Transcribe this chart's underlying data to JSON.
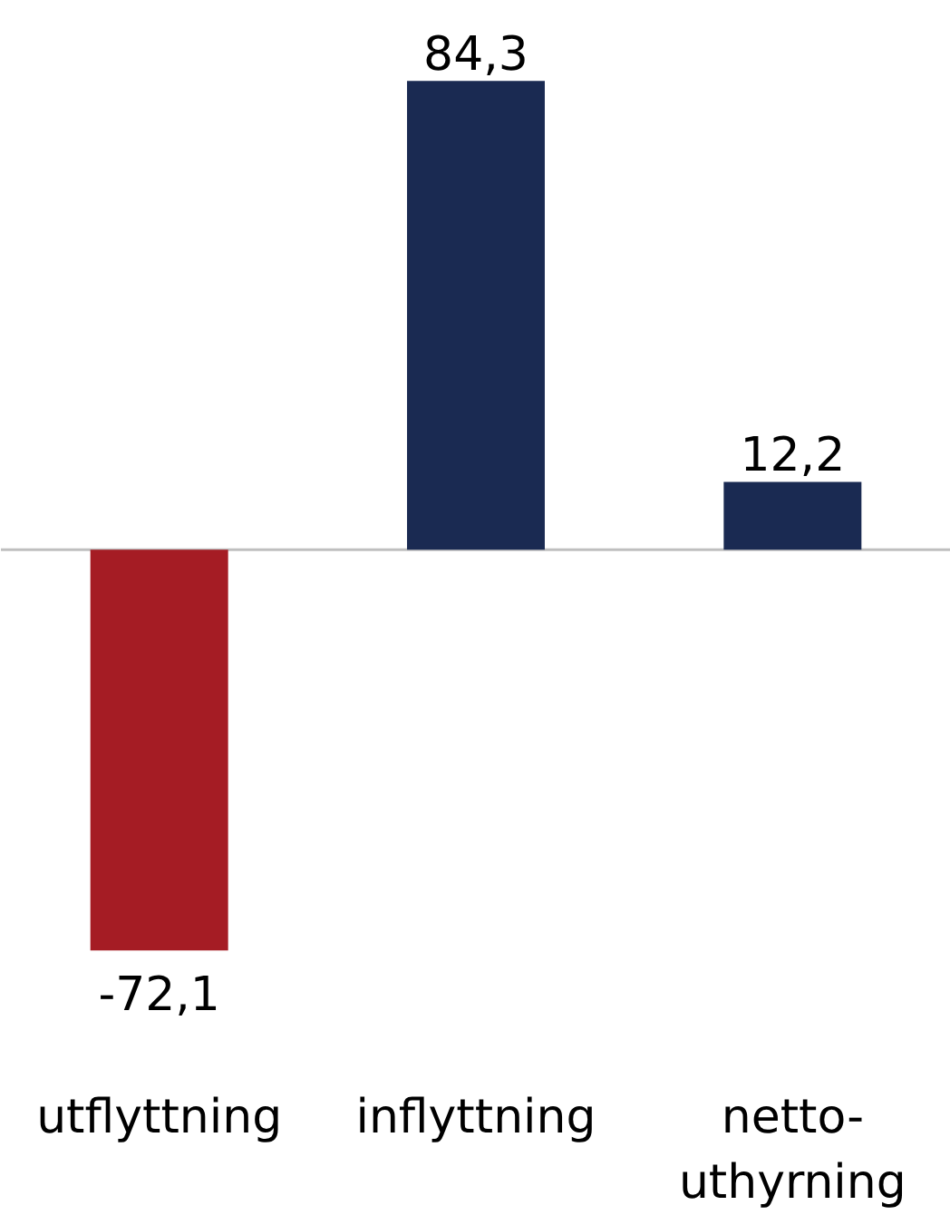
{
  "chart_data": {
    "type": "bar",
    "categories": [
      "utflyttning",
      "inflyttning",
      "netto-\nuthyrning"
    ],
    "values": [
      -72.1,
      84.3,
      12.2
    ],
    "colors": [
      "#a51c24",
      "#1a2a52",
      "#1a2a52"
    ],
    "value_labels": [
      "-72,1",
      "84,3",
      "12,2"
    ],
    "ref_lines": [
      {
        "axis": "y",
        "value": 0,
        "color": "#bfbfbf"
      }
    ],
    "grid": false,
    "tick_labels": "x"
  }
}
